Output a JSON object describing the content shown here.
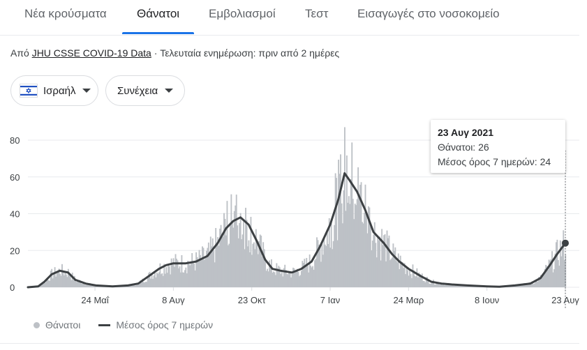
{
  "tabs": [
    "Νέα κρούσματα",
    "Θάνατοι",
    "Εμβολιασμοί",
    "Τεστ",
    "Εισαγωγές στο νοσοκομείο"
  ],
  "active_tab": 1,
  "source": {
    "prefix": "Από",
    "link": "JHU CSSE COVID-19 Data",
    "updated": "· Τελευταία ενημέρωση: πριν από 2 ημέρες"
  },
  "filters": {
    "country": "Ισραήλ",
    "period": "Συνέχεια"
  },
  "tooltip": {
    "date": "23 Αυγ 2021",
    "deaths": "Θάνατοι: 26",
    "avg": "Μέσος όρος 7 ημερών: 24"
  },
  "legend": {
    "bars": "Θάνατοι",
    "line": "Μέσος όρος 7 ημερών"
  },
  "colors": {
    "bars": "#bdc1c6",
    "line": "#3c4043",
    "accent": "#1a73e8"
  },
  "chart_data": {
    "type": "bar",
    "x_start": "2020-03-20",
    "x_end": "2021-08-23",
    "ylim": [
      0,
      80
    ],
    "yticks": [
      0,
      20,
      40,
      60,
      80
    ],
    "xticks": [
      {
        "label": "24 Μαΐ",
        "date": "2020-05-24"
      },
      {
        "label": "8 Αυγ",
        "date": "2020-08-08"
      },
      {
        "label": "23 Οκτ",
        "date": "2020-10-23"
      },
      {
        "label": "7 Ιαν",
        "date": "2021-01-07"
      },
      {
        "label": "24 Μαρ",
        "date": "2021-03-24"
      },
      {
        "label": "8 Ιουν",
        "date": "2021-06-08"
      },
      {
        "label": "23 Αυγ",
        "date": "2021-08-23"
      }
    ],
    "series": [
      {
        "name": "Θάνατοι",
        "type": "bar"
      },
      {
        "name": "Μέσος όρος 7 ημερών",
        "type": "line"
      }
    ],
    "avg_points": [
      [
        "2020-03-20",
        0
      ],
      [
        "2020-03-30",
        0.5
      ],
      [
        "2020-04-05",
        3
      ],
      [
        "2020-04-12",
        7
      ],
      [
        "2020-04-20",
        9
      ],
      [
        "2020-04-28",
        8
      ],
      [
        "2020-05-05",
        4
      ],
      [
        "2020-05-15",
        2
      ],
      [
        "2020-05-25",
        1
      ],
      [
        "2020-06-10",
        0.5
      ],
      [
        "2020-06-25",
        1
      ],
      [
        "2020-07-05",
        2
      ],
      [
        "2020-07-15",
        6
      ],
      [
        "2020-07-25",
        10
      ],
      [
        "2020-08-01",
        12
      ],
      [
        "2020-08-08",
        13
      ],
      [
        "2020-08-20",
        13
      ],
      [
        "2020-08-30",
        14
      ],
      [
        "2020-09-10",
        17
      ],
      [
        "2020-09-20",
        24
      ],
      [
        "2020-09-28",
        32
      ],
      [
        "2020-10-05",
        36
      ],
      [
        "2020-10-12",
        38
      ],
      [
        "2020-10-20",
        34
      ],
      [
        "2020-10-28",
        25
      ],
      [
        "2020-11-05",
        15
      ],
      [
        "2020-11-12",
        10
      ],
      [
        "2020-11-20",
        9
      ],
      [
        "2020-12-01",
        8
      ],
      [
        "2020-12-10",
        10
      ],
      [
        "2020-12-20",
        14
      ],
      [
        "2020-12-28",
        22
      ],
      [
        "2021-01-07",
        34
      ],
      [
        "2021-01-15",
        48
      ],
      [
        "2021-01-21",
        62
      ],
      [
        "2021-01-26",
        58
      ],
      [
        "2021-02-02",
        52
      ],
      [
        "2021-02-10",
        42
      ],
      [
        "2021-02-18",
        30
      ],
      [
        "2021-02-28",
        24
      ],
      [
        "2021-03-08",
        18
      ],
      [
        "2021-03-15",
        14
      ],
      [
        "2021-03-24",
        10
      ],
      [
        "2021-04-05",
        6
      ],
      [
        "2021-04-15",
        3
      ],
      [
        "2021-04-25",
        2
      ],
      [
        "2021-05-05",
        1.5
      ],
      [
        "2021-05-20",
        1
      ],
      [
        "2021-06-08",
        0.5
      ],
      [
        "2021-06-20",
        0.3
      ],
      [
        "2021-07-05",
        1
      ],
      [
        "2021-07-20",
        2
      ],
      [
        "2021-07-30",
        5
      ],
      [
        "2021-08-08",
        12
      ],
      [
        "2021-08-15",
        18
      ],
      [
        "2021-08-23",
        24
      ]
    ],
    "marker": {
      "date": "2021-08-23",
      "deaths": 26,
      "avg": 24
    }
  }
}
